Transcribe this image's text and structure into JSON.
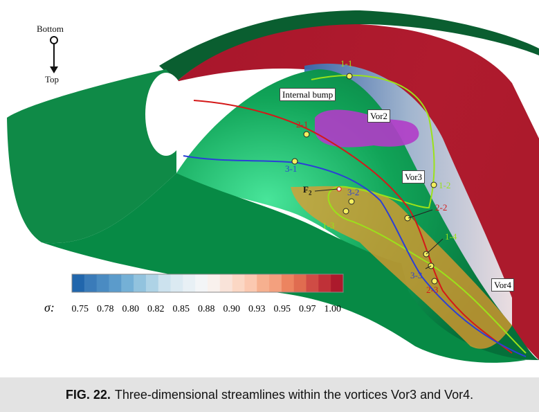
{
  "orientation": {
    "bottom": "Bottom",
    "top": "Top"
  },
  "labels": {
    "internal_bump": "Internal bump",
    "vor2": "Vor2",
    "vor3": "Vor3",
    "vor4": "Vor4",
    "f2": "F",
    "f2_sub": "2"
  },
  "points": {
    "p11": "1-1",
    "p12": "1-2",
    "p13": "1-3",
    "p14": "1-4",
    "p21": "2-1",
    "p22": "2-2",
    "p23": "2-3",
    "p31": "3-1",
    "p32": "3-2",
    "p33": "3-3"
  },
  "colorbar": {
    "symbol": "σ:",
    "ticks": [
      "0.75",
      "0.78",
      "0.80",
      "0.82",
      "0.85",
      "0.88",
      "0.90",
      "0.93",
      "0.95",
      "0.97",
      "1.00"
    ],
    "colors": [
      "#2166ac",
      "#3a7bb9",
      "#4a8bc2",
      "#5b9bcb",
      "#74b0d6",
      "#92c3de",
      "#aed3e6",
      "#cce2ee",
      "#dbeaf2",
      "#e8f0f5",
      "#f3f5f7",
      "#f9f1ed",
      "#f9e3d9",
      "#fbd7c4",
      "#fbc8b0",
      "#f6b08f",
      "#f3a07e",
      "#ec8460",
      "#e06c50",
      "#cf4c45",
      "#bf3138",
      "#ac1a2c"
    ]
  },
  "colors": {
    "surface": "#0c8a45",
    "streamline_1": "#9be21a",
    "streamline_2": "#d41818",
    "streamline_3": "#2b3fd6",
    "vor2": "#b13cc8",
    "vor34": "#e69a2e"
  },
  "caption": {
    "label": "FIG. 22.",
    "text": "Three-dimensional streamlines within the vortices Vor3 and Vor4."
  }
}
